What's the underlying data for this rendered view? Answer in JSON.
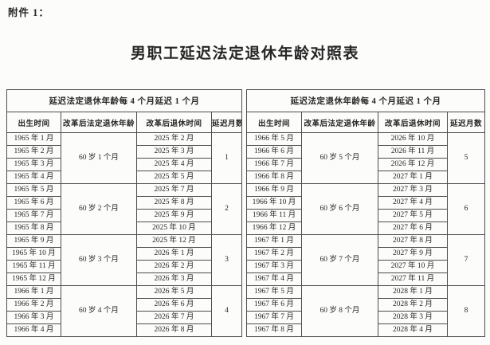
{
  "attachment_label": "附件 1：",
  "title": "男职工延迟法定退休年龄对照表",
  "colors": {
    "background": "#fcfcfb",
    "text": "#262626",
    "border": "#4d4d4d"
  },
  "table": {
    "banner": "延迟法定退休年龄每 4 个月延迟 1 个月",
    "columns": [
      "出生时间",
      "改革后法定退休年龄",
      "改革后退休时间",
      "延迟月数"
    ],
    "halves": [
      {
        "groups": [
          {
            "age": "60 岁 1 个月",
            "delay": "1",
            "rows": [
              [
                "1965 年 1 月",
                "2025 年 2 月"
              ],
              [
                "1965 年 2 月",
                "2025 年 3 月"
              ],
              [
                "1965 年 3 月",
                "2025 年 4 月"
              ],
              [
                "1965 年 4 月",
                "2025 年 5 月"
              ]
            ]
          },
          {
            "age": "60 岁 2 个月",
            "delay": "2",
            "rows": [
              [
                "1965 年 5 月",
                "2025 年 7 月"
              ],
              [
                "1965 年 6 月",
                "2025 年 8 月"
              ],
              [
                "1965 年 7 月",
                "2025 年 9 月"
              ],
              [
                "1965 年 8 月",
                "2025 年 10 月"
              ]
            ]
          },
          {
            "age": "60 岁 3 个月",
            "delay": "3",
            "rows": [
              [
                "1965 年 9 月",
                "2025 年 12 月"
              ],
              [
                "1965 年 10 月",
                "2026 年 1 月"
              ],
              [
                "1965 年 11 月",
                "2026 年 2 月"
              ],
              [
                "1965 年 12 月",
                "2026 年 3 月"
              ]
            ]
          },
          {
            "age": "60 岁 4 个月",
            "delay": "4",
            "rows": [
              [
                "1966 年 1 月",
                "2026 年 5 月"
              ],
              [
                "1966 年 2 月",
                "2026 年 6 月"
              ],
              [
                "1966 年 3 月",
                "2026 年 7 月"
              ],
              [
                "1966 年 4 月",
                "2026 年 8 月"
              ]
            ]
          }
        ]
      },
      {
        "groups": [
          {
            "age": "60 岁 5 个月",
            "delay": "5",
            "rows": [
              [
                "1966 年 5 月",
                "2026 年 10 月"
              ],
              [
                "1966 年 6 月",
                "2026 年 11 月"
              ],
              [
                "1966 年 7 月",
                "2026 年 12 月"
              ],
              [
                "1966 年 8 月",
                "2027 年 1 月"
              ]
            ]
          },
          {
            "age": "60 岁 6 个月",
            "delay": "6",
            "rows": [
              [
                "1966 年 9 月",
                "2027 年 3 月"
              ],
              [
                "1966 年 10 月",
                "2027 年 4 月"
              ],
              [
                "1966 年 11 月",
                "2027 年 5 月"
              ],
              [
                "1966 年 12 月",
                "2027 年 6 月"
              ]
            ]
          },
          {
            "age": "60 岁 7 个月",
            "delay": "7",
            "rows": [
              [
                "1967 年 1 月",
                "2027 年 8 月"
              ],
              [
                "1967 年 2 月",
                "2027 年 9 月"
              ],
              [
                "1967 年 3 月",
                "2027 年 10 月"
              ],
              [
                "1967 年 4 月",
                "2027 年 11 月"
              ]
            ]
          },
          {
            "age": "60 岁 8 个月",
            "delay": "8",
            "rows": [
              [
                "1967 年 5 月",
                "2028 年 1 月"
              ],
              [
                "1967 年 6 月",
                "2028 年 2 月"
              ],
              [
                "1967 年 7 月",
                "2028 年 3 月"
              ],
              [
                "1967 年 8 月",
                "2028 年 4 月"
              ]
            ]
          }
        ]
      }
    ]
  }
}
